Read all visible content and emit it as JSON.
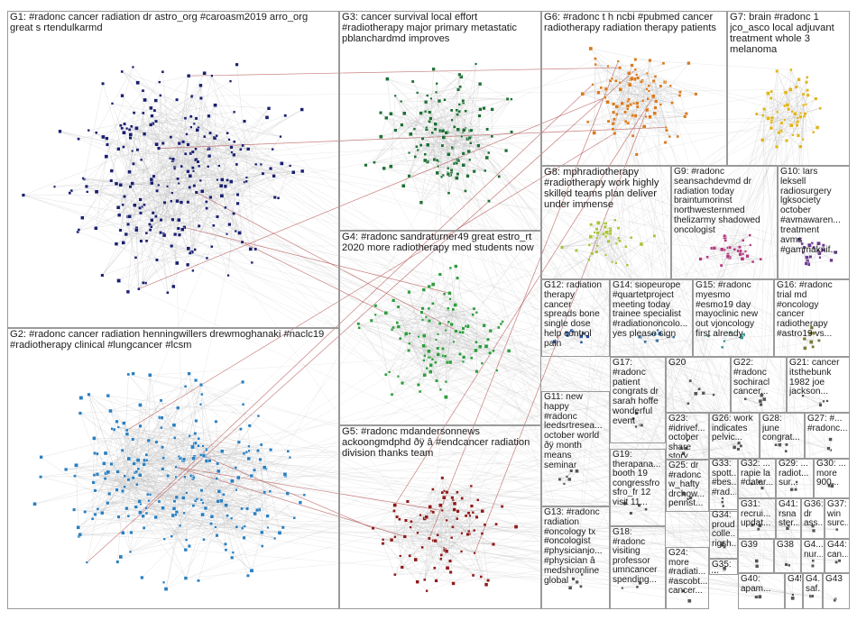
{
  "colors": {
    "background": "#ffffff",
    "edge": "#bdbdbd",
    "cross_edge": "#b04848",
    "box_border": "#9a9a9a"
  },
  "groups": [
    {
      "id": "G1",
      "text": "G1: #radonc cancer radiation dr astro_org #caroasm2019 arro_org\ngreat s rtendulkarmd",
      "color": "#1a1f6e"
    },
    {
      "id": "G2",
      "text": "G2: #radonc cancer radiation henningwillers drewmoghanaki #naclc19\n#radiotherapy clinical #lungcancer #lcsm",
      "color": "#2a7fc0"
    },
    {
      "id": "G3",
      "text": "G3: cancer survival local effort\n#radiotherapy major primary metastatic\npblanchardmd improves",
      "color": "#1f6e35"
    },
    {
      "id": "G4",
      "text": "G4: #radonc sandraturner49 great estro_rt\n2020 more radiotherapy med students now",
      "color": "#2f9c3e"
    },
    {
      "id": "G5",
      "text": "G5: #radonc mdandersonnews\nackoongmdphd ðÿ â #endcancer radiation\ndivision thanks team",
      "color": "#8e1a1a"
    },
    {
      "id": "G6",
      "text": "G6: #radonc t h ncbi #pubmed cancer\nradiotherapy radiation therapy patients",
      "color": "#d87a1e"
    },
    {
      "id": "G7",
      "text": "G7: brain #radonc 1\njco_asco local adjuvant\ntreatment whole 3\nmelanoma",
      "color": "#e0b51e"
    },
    {
      "id": "G8",
      "text": "G8: mphradiotherapy\n#radiotherapy work highly\nskilled teams plan deliver\nunder immense",
      "color": "#a8c43a"
    },
    {
      "id": "G9",
      "text": "G9: #radonc\nseansachdevmd dr\nradiation today\nbraintumorinst\nnorthwesternmed\nthelizarmy shadowed\noncologist",
      "color": "#b03a7e"
    },
    {
      "id": "G10",
      "text": "G10: lars\nleksell\nradiosurgery\nlgksociety\noctober\n#avmawaren...\ntreatment\navms\n#gammaknif...",
      "color": "#6a3a8e"
    },
    {
      "id": "G12",
      "text": "G12: radiation\ntherapy\ncancer\nspreads bone\nsingle dose\nhelp control\npain",
      "color": "#1f4e9c"
    },
    {
      "id": "G14",
      "text": "G14: siopeurope\n#quartetproject\nmeeting today\ntrainee specialist\n#radiationoncolo...\nyes please sign",
      "color": "#3a6e9c"
    },
    {
      "id": "G15",
      "text": "G15: #radonc\nmyesmo\n#esmo19 day\nmayoclinic new\nout vjoncology\nfirst already",
      "color": "#3a8e8e"
    },
    {
      "id": "G16",
      "text": "G16: #radonc\ntrial md\n#oncology\ncancer\nradiotherapy\n#astro19 vs...",
      "color": "#7a7a3a"
    },
    {
      "id": "G17",
      "text": "G17:\n#radonc\npatient\ncongrats dr\nsarah hoffe\nwonderful\nevent",
      "color": "#555555"
    },
    {
      "id": "G20",
      "text": "G20",
      "color": "#555555"
    },
    {
      "id": "G22",
      "text": "G22:\n#radonc\nsochiracl\ncancer...",
      "color": "#555555"
    },
    {
      "id": "G21",
      "text": "G21: cancer\nitsthebunk\n1982 joe\njackson...",
      "color": "#555555"
    },
    {
      "id": "G11",
      "text": "G11: new\nhappy\n#radonc\nleedsrtresea...\noctober world\nðÿ month\nmeans\nseminar",
      "color": "#555555"
    },
    {
      "id": "G23",
      "text": "G23:\n#idrivef...\noctober\nshare\nstory...",
      "color": "#555555"
    },
    {
      "id": "G26",
      "text": "G26: work\nindicates\npelvic...",
      "color": "#555555"
    },
    {
      "id": "G28",
      "text": "G28:\njune\ncongrat...",
      "color": "#555555"
    },
    {
      "id": "G27",
      "text": "G27: #...\n#radonc...",
      "color": "#555555"
    },
    {
      "id": "G33",
      "text": "G33:\nspott...\n#bes...\n#rad...",
      "color": "#555555"
    },
    {
      "id": "G32",
      "text": "G32: ...\nrapie la\n#datar...",
      "color": "#555555"
    },
    {
      "id": "G29",
      "text": "G29: ...\nradiot...\nsur...",
      "color": "#555555"
    },
    {
      "id": "G30",
      "text": "G30: ...\nmore\n900...",
      "color": "#555555"
    },
    {
      "id": "G19",
      "text": "G19:\ntherapana...\nbooth 19\ncongressfro\nsfro_fr 12\nvisit 11...",
      "color": "#555555"
    },
    {
      "id": "G25",
      "text": "G25: dr\n#radonc\nw_hafty\ndrchow...\npennst...",
      "color": "#555555"
    },
    {
      "id": "G31",
      "text": "G31:\nrecrui...\nupdat...",
      "color": "#555555"
    },
    {
      "id": "G41",
      "text": "G41:\nrsna\nster...",
      "color": "#555555"
    },
    {
      "id": "G36",
      "text": "G36:\ndr\nass...",
      "color": "#555555"
    },
    {
      "id": "G37",
      "text": "G37:\nwin\nsurc...",
      "color": "#555555"
    },
    {
      "id": "G13",
      "text": "G13: #radonc\nradiation\n#oncology tx\n#oncologist\n#physicianjo...\n#physician â\nmedshronline\nglobal",
      "color": "#555555"
    },
    {
      "id": "G18",
      "text": "G18:\n#radonc\nvisiting\nprofessor\numncancer\nspending...",
      "color": "#555555"
    },
    {
      "id": "G34",
      "text": "G34:\nproud\ncolle...\nrigsh...",
      "color": "#555555"
    },
    {
      "id": "G24",
      "text": "G24:\nmore\n#radiati...\n#ascobt...\ncancer...",
      "color": "#555555"
    },
    {
      "id": "G35",
      "text": "G35:\nw...",
      "color": "#555555"
    },
    {
      "id": "G39",
      "text": "G39",
      "color": "#555555"
    },
    {
      "id": "G38",
      "text": "G38",
      "color": "#555555"
    },
    {
      "id": "G42",
      "text": "G4...\nnur...",
      "color": "#555555"
    },
    {
      "id": "G44",
      "text": "G44:\ncan...",
      "color": "#555555"
    },
    {
      "id": "G40",
      "text": "G40:\napam...",
      "color": "#555555"
    },
    {
      "id": "G45",
      "text": "G45",
      "color": "#555555"
    },
    {
      "id": "G46",
      "text": "G4...\nsaf...",
      "color": "#555555"
    },
    {
      "id": "G43",
      "text": "G43",
      "color": "#555555"
    }
  ]
}
